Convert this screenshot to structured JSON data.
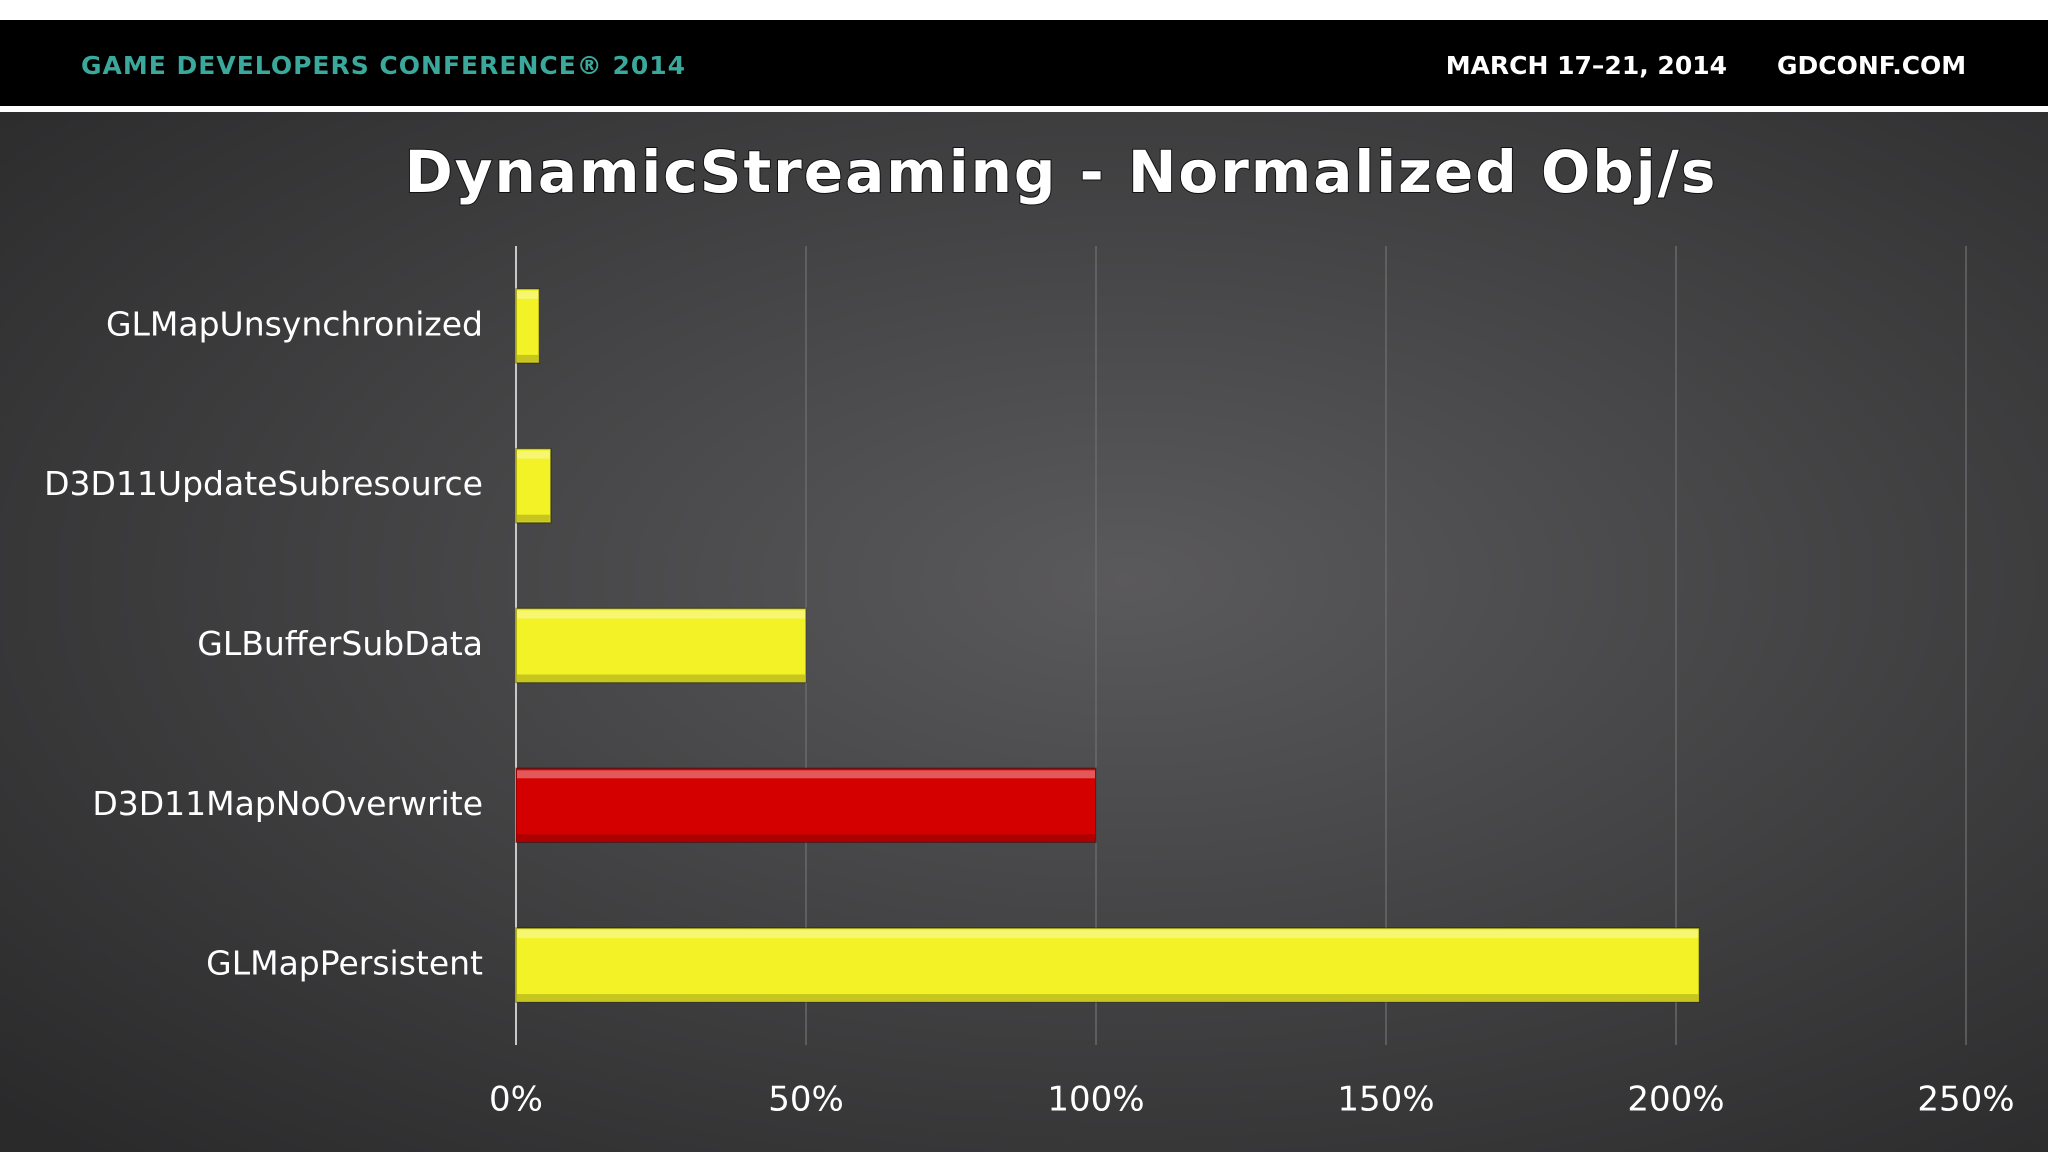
{
  "header": {
    "conference": "GAME DEVELOPERS CONFERENCE® 2014",
    "dates": "MARCH 17–21, 2014",
    "website": "GDCONF.COM"
  },
  "chart_data": {
    "type": "bar",
    "orientation": "horizontal",
    "title": "DynamicStreaming - Normalized Obj/s",
    "categories": [
      "GLMapUnsynchronized",
      "D3D11UpdateSubresource",
      "GLBufferSubData",
      "D3D11MapNoOverwrite",
      "GLMapPersistent"
    ],
    "values": [
      4,
      6,
      50,
      100,
      204
    ],
    "colors": [
      "#f2f226",
      "#f2f226",
      "#f2f226",
      "#d40000",
      "#f2f226"
    ],
    "xlim": [
      0,
      250
    ],
    "xticks": [
      {
        "value": 0,
        "label": "0%"
      },
      {
        "value": 50,
        "label": "50%"
      },
      {
        "value": 100,
        "label": "100%"
      },
      {
        "value": 150,
        "label": "150%"
      },
      {
        "value": 200,
        "label": "200%"
      },
      {
        "value": 250,
        "label": "250%"
      }
    ],
    "grid": true
  }
}
